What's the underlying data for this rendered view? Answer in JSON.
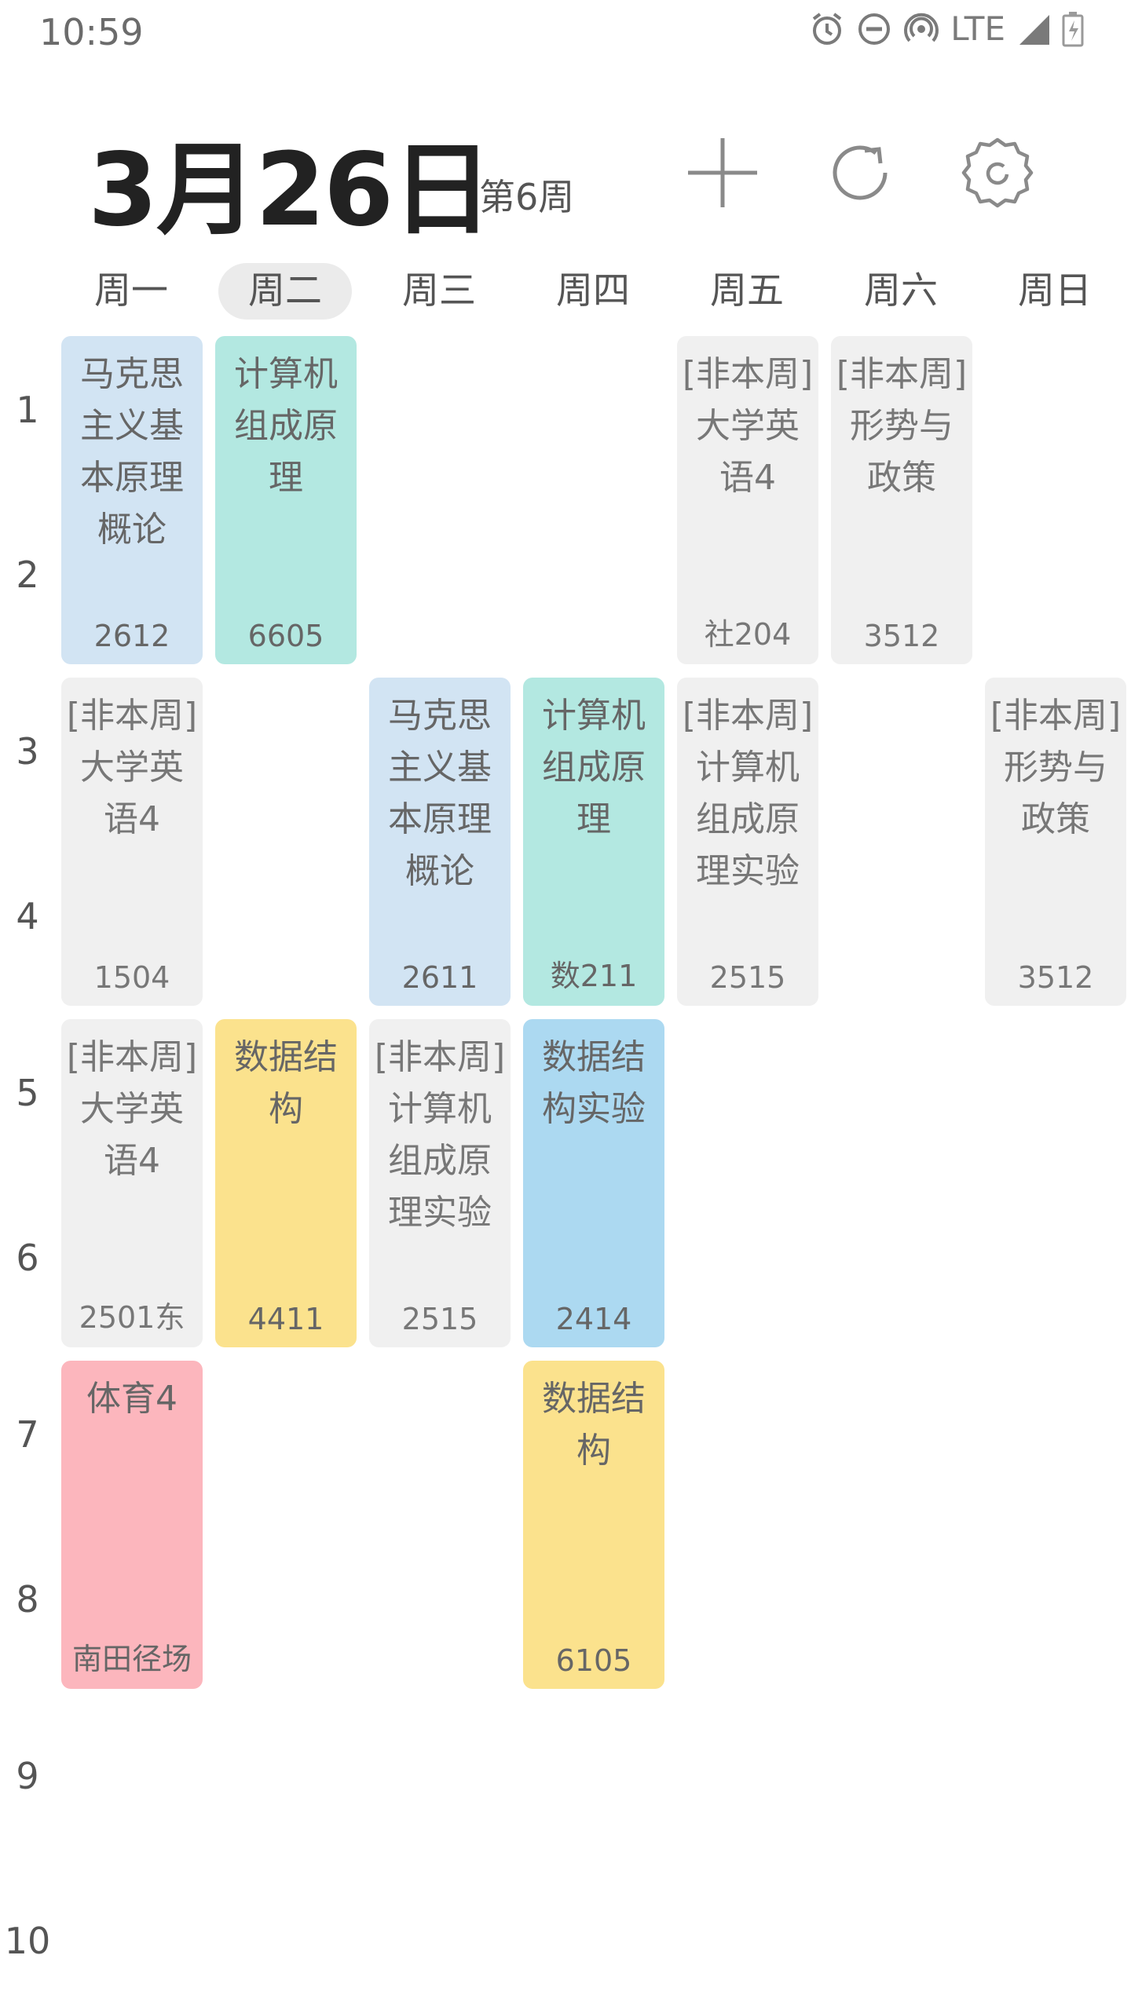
{
  "status_bar": {
    "time": "10:59",
    "network": "LTE"
  },
  "header": {
    "date": "3月26日",
    "week": "第6周"
  },
  "toolbar": {
    "add_icon": "plus-icon",
    "refresh_icon": "refresh-icon",
    "settings_icon": "gear-icon"
  },
  "days": [
    "周一",
    "周二",
    "周三",
    "周四",
    "周五",
    "周六",
    "周日"
  ],
  "today_index": 1,
  "periods": [
    "1",
    "2",
    "3",
    "4",
    "5",
    "6",
    "7",
    "8",
    "9",
    "10"
  ],
  "courses": [
    {
      "name": "马克思主义基本原理概论",
      "room": "2612"
    },
    {
      "name": "计算机组成原理",
      "room": "6605"
    },
    {
      "name": "[非本周]大学英语4",
      "room": "社204"
    },
    {
      "name": "[非本周]形势与政策",
      "room": "3512"
    },
    {
      "name": "[非本周]大学英语4",
      "room": "1504"
    },
    {
      "name": "马克思主义基本原理概论",
      "room": "2611"
    },
    {
      "name": "计算机组成原理",
      "room": "数211"
    },
    {
      "name": "[非本周]计算机组成原理实验",
      "room": "2515"
    },
    {
      "name": "[非本周]形势与政策",
      "room": "3512"
    },
    {
      "name": "[非本周]大学英语4",
      "room": "2501东"
    },
    {
      "name": "数据结构",
      "room": "4411"
    },
    {
      "name": "[非本周]计算机组成原理实验",
      "room": "2515"
    },
    {
      "name": "数据结构实验",
      "room": "2414"
    },
    {
      "name": "体育4",
      "room": "南田径场"
    },
    {
      "name": "数据结构",
      "room": "6105"
    }
  ],
  "colors": {
    "blue": "#d2e4f3",
    "teal": "#b3e8e1",
    "gray": "#f0f0f0",
    "yellow": "#fbe28d",
    "sky": "#acd9f1",
    "pink": "#fcb6bd"
  }
}
